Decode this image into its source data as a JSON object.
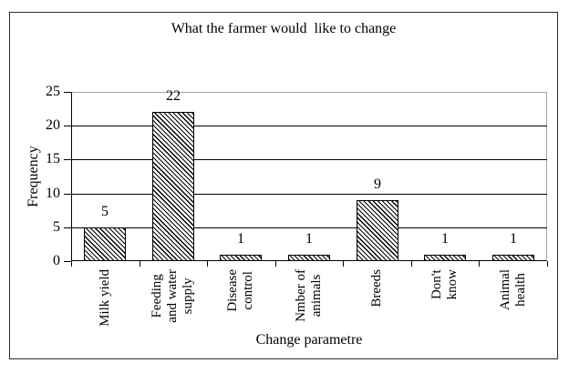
{
  "chart_data": {
    "type": "bar",
    "title": "What the farmer would  like to change",
    "xlabel": "Change parametre",
    "ylabel": "Frequency",
    "categories": [
      "Milk yield",
      "Feeding and water supply",
      "Disease control",
      "Nmber of animals",
      "Breeds",
      "Don't know",
      "Animal health"
    ],
    "category_lines": [
      [
        "Milk yield"
      ],
      [
        "Feeding",
        "and water",
        "supply"
      ],
      [
        "Disease",
        "control"
      ],
      [
        "Nmber of",
        "animals"
      ],
      [
        "Breeds"
      ],
      [
        "Don't",
        "know"
      ],
      [
        "Animal",
        "health"
      ]
    ],
    "values": [
      5,
      22,
      1,
      1,
      9,
      1,
      1
    ],
    "ylim": [
      0,
      25
    ],
    "yticks": [
      0,
      5,
      10,
      15,
      20,
      25
    ],
    "grid": true,
    "legend": false,
    "bar_style": "diagonal-hatch",
    "bar_fill_color": "#000000",
    "bar_background": "#ffffff",
    "bar_outline_color": "#000000",
    "axis_color": "#000000",
    "plot_border_color": "#a6a6a6",
    "figure_border_color": "#2b2b2b",
    "background_color": "#ffffff"
  }
}
